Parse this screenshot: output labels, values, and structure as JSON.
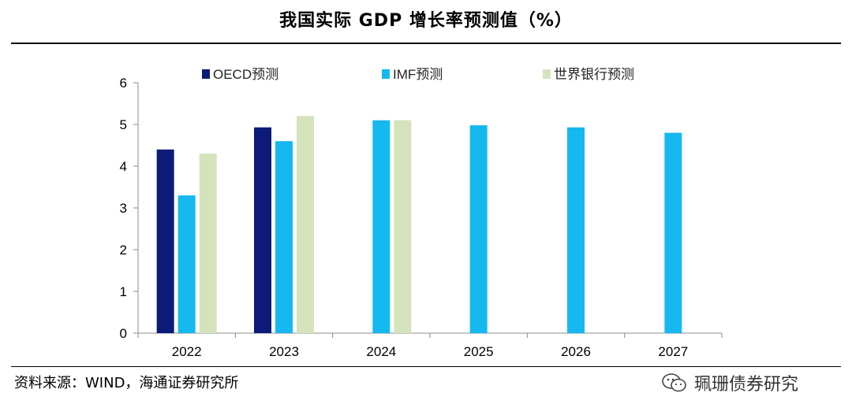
{
  "header": {
    "title": "我国实际 GDP 增长率预测值（%）"
  },
  "footer": {
    "source": "资料来源：WIND，海通证券研究所",
    "watermark": "珮珊债券研究"
  },
  "colors": {
    "oecd": "#0d1b78",
    "imf": "#16b8f0",
    "worldbank": "#d5e3bd"
  },
  "chart_data": {
    "type": "bar",
    "title": "我国实际 GDP 增长率预测值（%）",
    "categories": [
      "2022",
      "2023",
      "2024",
      "2025",
      "2026",
      "2027"
    ],
    "series": [
      {
        "name": "OECD预测",
        "values": [
          4.4,
          4.93,
          null,
          null,
          null,
          null
        ]
      },
      {
        "name": "IMF预测",
        "values": [
          3.3,
          4.6,
          5.1,
          4.98,
          4.93,
          4.8
        ]
      },
      {
        "name": "世界银行预测",
        "values": [
          4.3,
          5.2,
          5.1,
          null,
          null,
          null
        ]
      }
    ],
    "ylim": [
      0,
      6
    ],
    "yticks": [
      "0",
      "1",
      "2",
      "3",
      "4",
      "5",
      "6"
    ],
    "xlabel": "",
    "ylabel": "",
    "legend": "top"
  }
}
